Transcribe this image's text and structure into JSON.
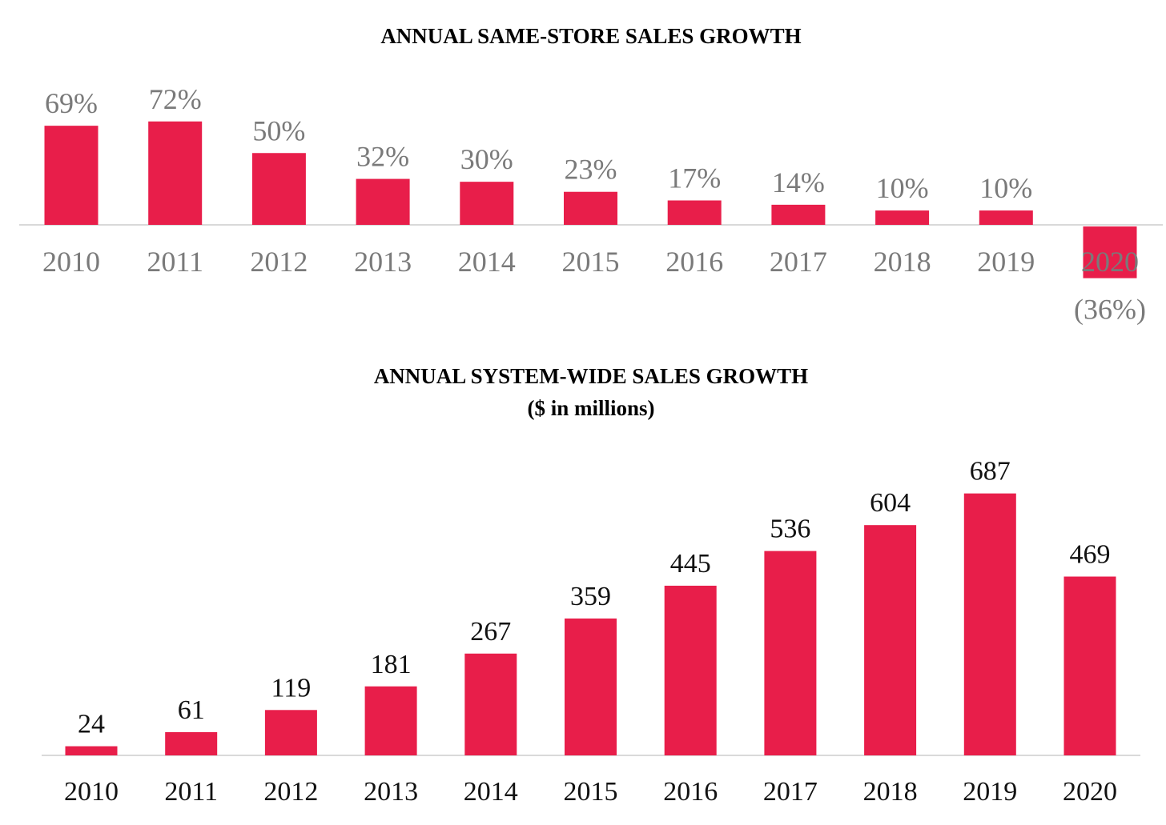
{
  "chart_data": [
    {
      "type": "bar",
      "title": "ANNUAL SAME-STORE SALES GROWTH",
      "categories": [
        "2010",
        "2011",
        "2012",
        "2013",
        "2014",
        "2015",
        "2016",
        "2017",
        "2018",
        "2019",
        "2020"
      ],
      "values": [
        69,
        72,
        50,
        32,
        30,
        23,
        17,
        14,
        10,
        10,
        -36
      ],
      "data_labels": [
        "69%",
        "72%",
        "50%",
        "32%",
        "30%",
        "23%",
        "17%",
        "14%",
        "10%",
        "10%",
        "(36%)"
      ],
      "unit": "%",
      "bar_color": "#e81e4a",
      "grid": false,
      "legend": "none"
    },
    {
      "type": "bar",
      "title": "ANNUAL SYSTEM-WIDE SALES GROWTH",
      "subtitle": "($ in millions)",
      "categories": [
        "2010",
        "2011",
        "2012",
        "2013",
        "2014",
        "2015",
        "2016",
        "2017",
        "2018",
        "2019",
        "2020"
      ],
      "values": [
        24,
        61,
        119,
        181,
        267,
        359,
        445,
        536,
        604,
        687,
        469
      ],
      "data_labels": [
        "24",
        "61",
        "119",
        "181",
        "267",
        "359",
        "445",
        "536",
        "604",
        "687",
        "469"
      ],
      "bar_color": "#e81e4a",
      "grid": false,
      "legend": "none"
    }
  ]
}
